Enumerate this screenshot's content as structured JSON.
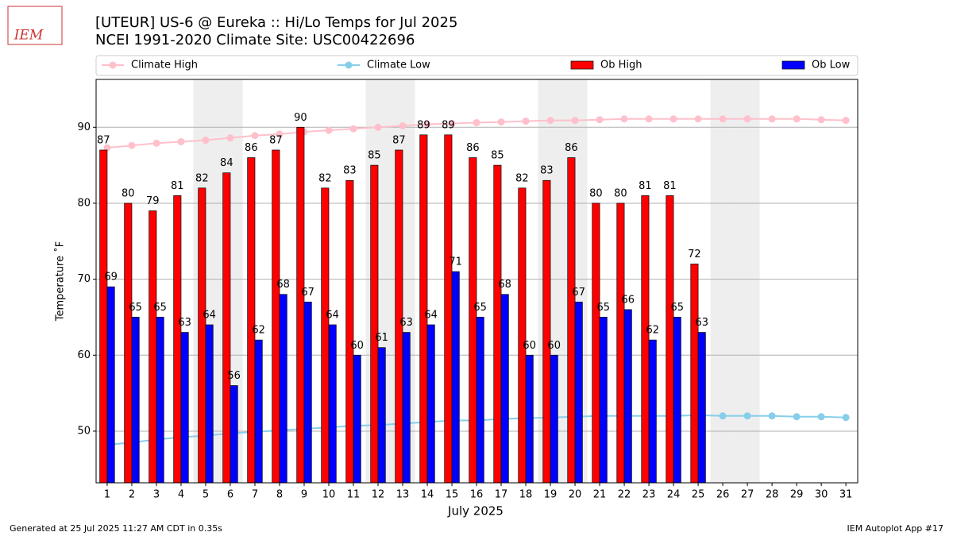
{
  "logo": "IEM",
  "footer": {
    "left": "Generated at 25 Jul 2025 11:27 AM CDT in 0.35s",
    "right": "IEM Autoplot App #17"
  },
  "chart_data": {
    "type": "bar",
    "title": "[UTEUR] US-6 @ Eureka  :: Hi/Lo Temps for Jul 2025",
    "subtitle": "NCEI 1991-2020 Climate Site: USC00422696",
    "x_label": "July 2025",
    "y_label": "Temperature ˚F",
    "x": [
      1,
      2,
      3,
      4,
      5,
      6,
      7,
      8,
      9,
      10,
      11,
      12,
      13,
      14,
      15,
      16,
      17,
      18,
      19,
      20,
      21,
      22,
      23,
      24,
      25,
      26,
      27,
      28,
      29,
      30,
      31
    ],
    "xlim": [
      0.55,
      31.48
    ],
    "xticks": [
      1,
      2,
      3,
      4,
      5,
      6,
      7,
      8,
      9,
      10,
      11,
      12,
      13,
      14,
      15,
      16,
      17,
      18,
      19,
      20,
      21,
      22,
      23,
      24,
      25,
      26,
      27,
      28,
      29,
      30,
      31
    ],
    "ylim": [
      43.2,
      96.3
    ],
    "yticks": [
      50,
      60,
      70,
      80,
      90
    ],
    "grid": true,
    "legend": "top",
    "highlight_days": [
      5,
      6,
      12,
      13,
      19,
      20,
      26,
      27
    ],
    "series": [
      {
        "name": "Climate High",
        "type": "line",
        "color": "#ffc0cb",
        "values": [
          87.3,
          87.6,
          87.9,
          88.1,
          88.3,
          88.6,
          88.9,
          89.1,
          89.4,
          89.6,
          89.8,
          90.0,
          90.2,
          90.4,
          90.5,
          90.6,
          90.7,
          90.8,
          90.9,
          90.9,
          91.0,
          91.1,
          91.1,
          91.1,
          91.1,
          91.1,
          91.1,
          91.1,
          91.1,
          91.0,
          90.9
        ]
      },
      {
        "name": "Climate Low",
        "type": "line",
        "color": "#87ceeb",
        "values": [
          48.2,
          48.5,
          48.9,
          49.2,
          49.4,
          49.7,
          49.9,
          50.1,
          50.3,
          50.5,
          50.7,
          50.8,
          51.0,
          51.2,
          51.4,
          51.4,
          51.6,
          51.7,
          51.8,
          51.9,
          52.0,
          52.0,
          52.0,
          52.0,
          52.1,
          52.0,
          52.0,
          52.0,
          51.9,
          51.9,
          51.8
        ]
      },
      {
        "name": "Ob High",
        "type": "bar",
        "color": "#ff0000",
        "values": [
          87,
          80,
          79,
          81,
          82,
          84,
          86,
          87,
          90,
          82,
          83,
          85,
          87,
          89,
          89,
          86,
          85,
          82,
          83,
          86,
          80,
          80,
          81,
          81,
          72,
          null,
          null,
          null,
          null,
          null,
          null
        ]
      },
      {
        "name": "Ob Low",
        "type": "bar",
        "color": "#0000ff",
        "values": [
          69,
          65,
          65,
          63,
          64,
          56,
          62,
          68,
          67,
          64,
          60,
          61,
          63,
          64,
          71,
          65,
          68,
          60,
          60,
          67,
          65,
          66,
          62,
          65,
          63,
          null,
          null,
          null,
          null,
          null,
          null
        ]
      }
    ]
  }
}
